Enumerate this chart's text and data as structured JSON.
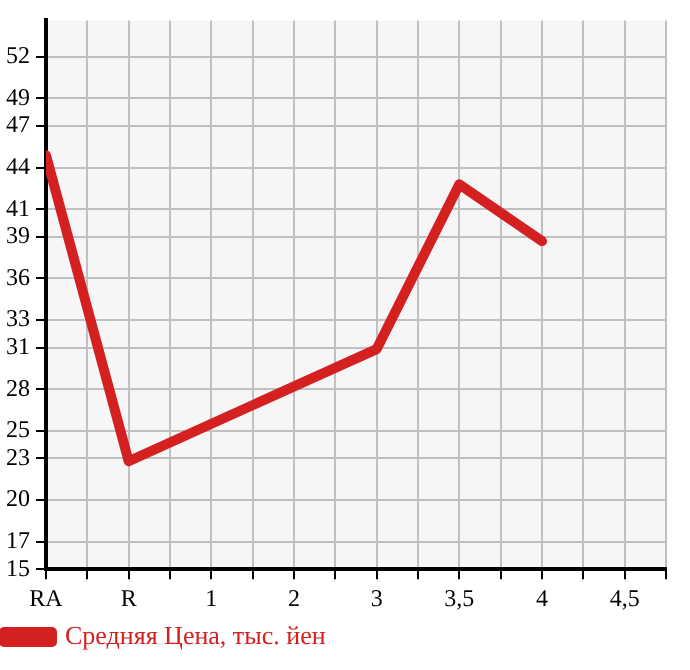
{
  "chart_data": {
    "type": "line",
    "categories": [
      "RA",
      "R",
      "1",
      "2",
      "3",
      "3,5",
      "4",
      "4,5"
    ],
    "series": [
      {
        "name": "Средняя Цена, тыс. йен",
        "color": "#d42020",
        "values": [
          44.9,
          22.8,
          null,
          null,
          30.9,
          42.8,
          38.7,
          null
        ]
      }
    ],
    "ylim": [
      15,
      54.64
    ],
    "yticks": [
      15,
      17,
      20,
      23,
      25,
      28,
      31,
      33,
      36,
      39,
      41,
      44,
      47,
      49,
      52
    ],
    "grid": true,
    "legend": "bottom left",
    "marker": "none",
    "line_style": "solid"
  }
}
